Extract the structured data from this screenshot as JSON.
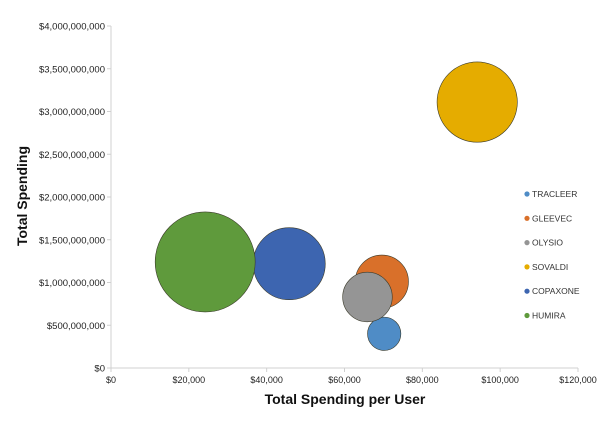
{
  "chart_data": {
    "type": "bubble",
    "title": "",
    "xlabel": "Total Spending per User",
    "ylabel": "Total Spending",
    "xlim": [
      0,
      120000
    ],
    "ylim": [
      0,
      4000000000
    ],
    "x_ticks": [
      0,
      20000,
      40000,
      60000,
      80000,
      100000,
      120000
    ],
    "x_tick_labels": [
      "$0",
      "$20,000",
      "$40,000",
      "$60,000",
      "$80,000",
      "$100,000",
      "$120,000"
    ],
    "y_ticks": [
      0,
      500000000,
      1000000000,
      1500000000,
      2000000000,
      2500000000,
      3000000000,
      3500000000,
      4000000000
    ],
    "y_tick_labels": [
      "$0",
      "$500,000,000",
      "$1,000,000,000",
      "$1,500,000,000",
      "$2,000,000,000",
      "$2,500,000,000",
      "$3,000,000,000",
      "$3,500,000,000",
      "$4,000,000,000"
    ],
    "grid": false,
    "legend_position": "right",
    "series": [
      {
        "name": "TRACLEER",
        "x": 70200,
        "y": 400000000,
        "size": 5700,
        "color": "#4f8cc6"
      },
      {
        "name": "GLEEVEC",
        "x": 69600,
        "y": 1010000000,
        "size": 14500,
        "color": "#d9702a"
      },
      {
        "name": "OLYSIO",
        "x": 65900,
        "y": 830000000,
        "size": 12600,
        "color": "#959595"
      },
      {
        "name": "SOVALDI",
        "x": 94100,
        "y": 3110000000,
        "size": 33000,
        "color": "#e5ac00"
      },
      {
        "name": "COPAXONE",
        "x": 45800,
        "y": 1220000000,
        "size": 26600,
        "color": "#3d65b0"
      },
      {
        "name": "HUMIRA",
        "x": 24200,
        "y": 1240000000,
        "size": 51200,
        "color": "#5f9a3c"
      }
    ]
  }
}
